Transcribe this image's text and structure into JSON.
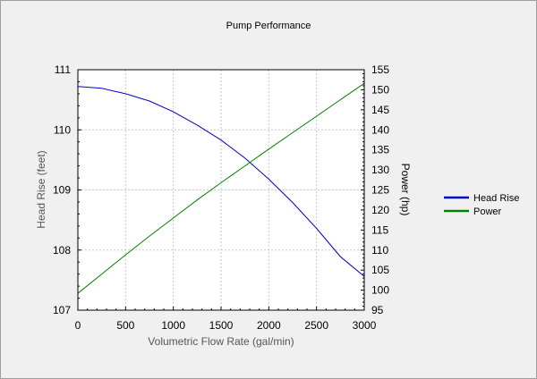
{
  "chart_data": {
    "type": "line",
    "title": "Pump Performance",
    "xlabel": "Volumetric Flow Rate (gal/min)",
    "ylabel": "Head Rise (feet)",
    "y2label": "Power (hp)",
    "xlim": [
      0,
      3000
    ],
    "ylim": [
      107,
      111
    ],
    "y2lim": [
      95,
      155
    ],
    "x_ticks": [
      "0",
      "500",
      "1000",
      "1500",
      "2000",
      "2500",
      "3000"
    ],
    "y_ticks": [
      "107",
      "108",
      "109",
      "110",
      "111"
    ],
    "y2_ticks": [
      "95",
      "100",
      "105",
      "110",
      "115",
      "120",
      "125",
      "130",
      "135",
      "140",
      "145",
      "150",
      "155"
    ],
    "grid": true,
    "legend_position": "right",
    "series": [
      {
        "name": "Head Rise",
        "axis": "left",
        "color": "#0000cc",
        "x": [
          0,
          250,
          500,
          750,
          1000,
          1250,
          1500,
          1750,
          2000,
          2250,
          2500,
          2750,
          3000
        ],
        "y": [
          110.72,
          110.69,
          110.6,
          110.48,
          110.3,
          110.08,
          109.83,
          109.53,
          109.18,
          108.79,
          108.36,
          107.89,
          107.56
        ]
      },
      {
        "name": "Power",
        "axis": "right",
        "color": "#008000",
        "x": [
          0,
          250,
          500,
          750,
          1000,
          1250,
          1500,
          1750,
          2000,
          2250,
          2500,
          2750,
          3000
        ],
        "y": [
          99.2,
          104.0,
          108.8,
          113.5,
          118.0,
          122.5,
          126.8,
          131.0,
          135.2,
          139.3,
          143.4,
          147.5,
          151.6
        ]
      }
    ]
  }
}
